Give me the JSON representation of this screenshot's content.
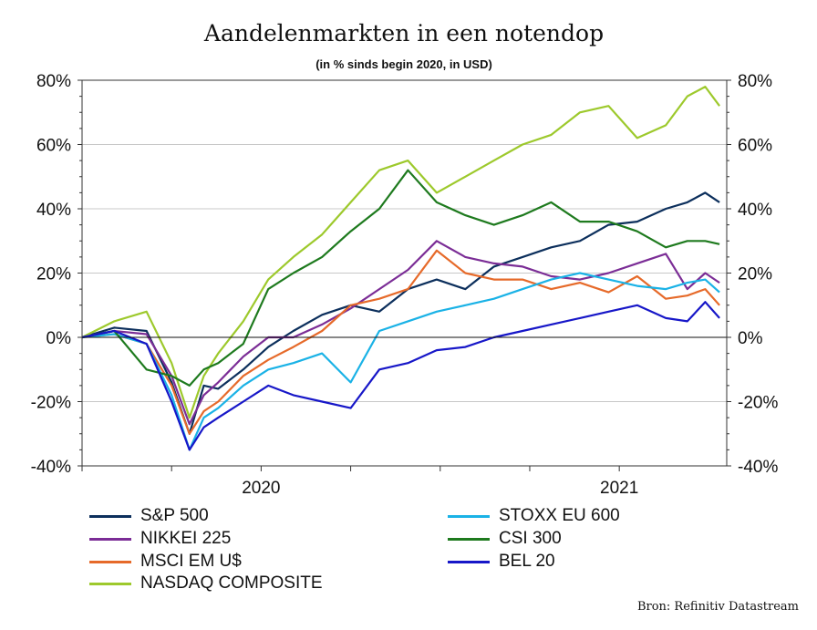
{
  "chart_data": {
    "type": "line",
    "title": "Aandelenmarkten in een notendop",
    "subtitle": "(in % sinds begin 2020, in USD)",
    "source": "Bron: Refinitiv Datastream",
    "ylim": [
      -40,
      80
    ],
    "yticks": [
      "80%",
      "60%",
      "40%",
      "20%",
      "0%",
      "-20%",
      "-40%"
    ],
    "ytick_values": [
      80,
      60,
      40,
      20,
      0,
      -20,
      -40
    ],
    "xlim": [
      2019.75,
      2021.55
    ],
    "xtick_labels": [
      "2020",
      "2021"
    ],
    "xtick_label_values": [
      2020.25,
      2021.25
    ],
    "x_minor_ticks": [
      2019.75,
      2020.0,
      2020.25,
      2020.5,
      2020.75,
      2021.0,
      2021.25
    ],
    "grid": true,
    "legend_position": "bottom",
    "series": [
      {
        "name": "S&P 500",
        "color": "#0c2f5c",
        "x": [
          2019.75,
          2019.84,
          2019.93,
          2020.0,
          2020.05,
          2020.09,
          2020.13,
          2020.2,
          2020.27,
          2020.34,
          2020.42,
          2020.5,
          2020.58,
          2020.66,
          2020.74,
          2020.82,
          2020.9,
          2020.98,
          2021.06,
          2021.14,
          2021.22,
          2021.3,
          2021.38,
          2021.44,
          2021.49,
          2021.53
        ],
        "values": [
          0,
          3,
          2,
          -14,
          -30,
          -15,
          -16,
          -10,
          -3,
          2,
          7,
          10,
          8,
          15,
          18,
          15,
          22,
          25,
          28,
          30,
          35,
          36,
          40,
          42,
          45,
          42
        ]
      },
      {
        "name": "NIKKEI 225",
        "color": "#7b2d96",
        "x": [
          2019.75,
          2019.84,
          2019.93,
          2020.0,
          2020.05,
          2020.09,
          2020.13,
          2020.2,
          2020.27,
          2020.34,
          2020.42,
          2020.5,
          2020.58,
          2020.66,
          2020.74,
          2020.82,
          2020.9,
          2020.98,
          2021.06,
          2021.14,
          2021.22,
          2021.3,
          2021.38,
          2021.44,
          2021.49,
          2021.53
        ],
        "values": [
          0,
          2,
          1,
          -12,
          -27,
          -18,
          -14,
          -6,
          0,
          0,
          4,
          9,
          15,
          21,
          30,
          25,
          23,
          22,
          19,
          18,
          20,
          23,
          26,
          15,
          20,
          17
        ]
      },
      {
        "name": "MSCI EM U$",
        "color": "#e66a2a",
        "x": [
          2019.75,
          2019.84,
          2019.93,
          2020.0,
          2020.05,
          2020.09,
          2020.13,
          2020.2,
          2020.27,
          2020.34,
          2020.42,
          2020.5,
          2020.58,
          2020.66,
          2020.74,
          2020.82,
          2020.9,
          2020.98,
          2021.06,
          2021.14,
          2021.22,
          2021.3,
          2021.38,
          2021.44,
          2021.49,
          2021.53
        ],
        "values": [
          0,
          1,
          -2,
          -15,
          -30,
          -23,
          -20,
          -12,
          -7,
          -3,
          2,
          10,
          12,
          15,
          27,
          20,
          18,
          18,
          15,
          17,
          14,
          19,
          12,
          13,
          15,
          10
        ]
      },
      {
        "name": "NASDAQ COMPOSITE",
        "color": "#9dc92c",
        "x": [
          2019.75,
          2019.84,
          2019.93,
          2020.0,
          2020.05,
          2020.09,
          2020.13,
          2020.2,
          2020.27,
          2020.34,
          2020.42,
          2020.5,
          2020.58,
          2020.66,
          2020.74,
          2020.82,
          2020.9,
          2020.98,
          2021.06,
          2021.14,
          2021.22,
          2021.3,
          2021.38,
          2021.44,
          2021.49,
          2021.53
        ],
        "values": [
          0,
          5,
          8,
          -8,
          -25,
          -12,
          -5,
          5,
          18,
          25,
          32,
          42,
          52,
          55,
          45,
          50,
          55,
          60,
          63,
          70,
          72,
          62,
          66,
          75,
          78,
          72
        ]
      },
      {
        "name": "STOXX EU 600",
        "color": "#1ab2e6",
        "x": [
          2019.75,
          2019.84,
          2019.93,
          2020.0,
          2020.05,
          2020.09,
          2020.13,
          2020.2,
          2020.27,
          2020.34,
          2020.42,
          2020.5,
          2020.58,
          2020.66,
          2020.74,
          2020.82,
          2020.9,
          2020.98,
          2021.06,
          2021.14,
          2021.22,
          2021.3,
          2021.38,
          2021.44,
          2021.49,
          2021.53
        ],
        "values": [
          0,
          1,
          -2,
          -18,
          -35,
          -25,
          -22,
          -15,
          -10,
          -8,
          -5,
          -14,
          2,
          5,
          8,
          10,
          12,
          15,
          18,
          20,
          18,
          16,
          15,
          17,
          18,
          14
        ]
      },
      {
        "name": "CSI 300",
        "color": "#1e7a1e",
        "x": [
          2019.75,
          2019.84,
          2019.93,
          2020.0,
          2020.05,
          2020.09,
          2020.13,
          2020.2,
          2020.27,
          2020.34,
          2020.42,
          2020.5,
          2020.58,
          2020.66,
          2020.74,
          2020.82,
          2020.9,
          2020.98,
          2021.06,
          2021.14,
          2021.22,
          2021.3,
          2021.38,
          2021.44,
          2021.49,
          2021.53
        ],
        "values": [
          0,
          2,
          -10,
          -12,
          -15,
          -10,
          -8,
          -2,
          15,
          20,
          25,
          33,
          40,
          52,
          42,
          38,
          35,
          38,
          42,
          36,
          36,
          33,
          28,
          30,
          30,
          29
        ]
      },
      {
        "name": "BEL 20",
        "color": "#1717c8",
        "x": [
          2019.75,
          2019.84,
          2019.93,
          2020.0,
          2020.05,
          2020.09,
          2020.13,
          2020.2,
          2020.27,
          2020.34,
          2020.42,
          2020.5,
          2020.58,
          2020.66,
          2020.74,
          2020.82,
          2020.9,
          2020.98,
          2021.06,
          2021.14,
          2021.22,
          2021.3,
          2021.38,
          2021.44,
          2021.49,
          2021.53
        ],
        "values": [
          0,
          2,
          -2,
          -20,
          -35,
          -28,
          -25,
          -20,
          -15,
          -18,
          -20,
          -22,
          -10,
          -8,
          -4,
          -3,
          0,
          2,
          4,
          6,
          8,
          10,
          6,
          5,
          11,
          6
        ]
      }
    ]
  }
}
